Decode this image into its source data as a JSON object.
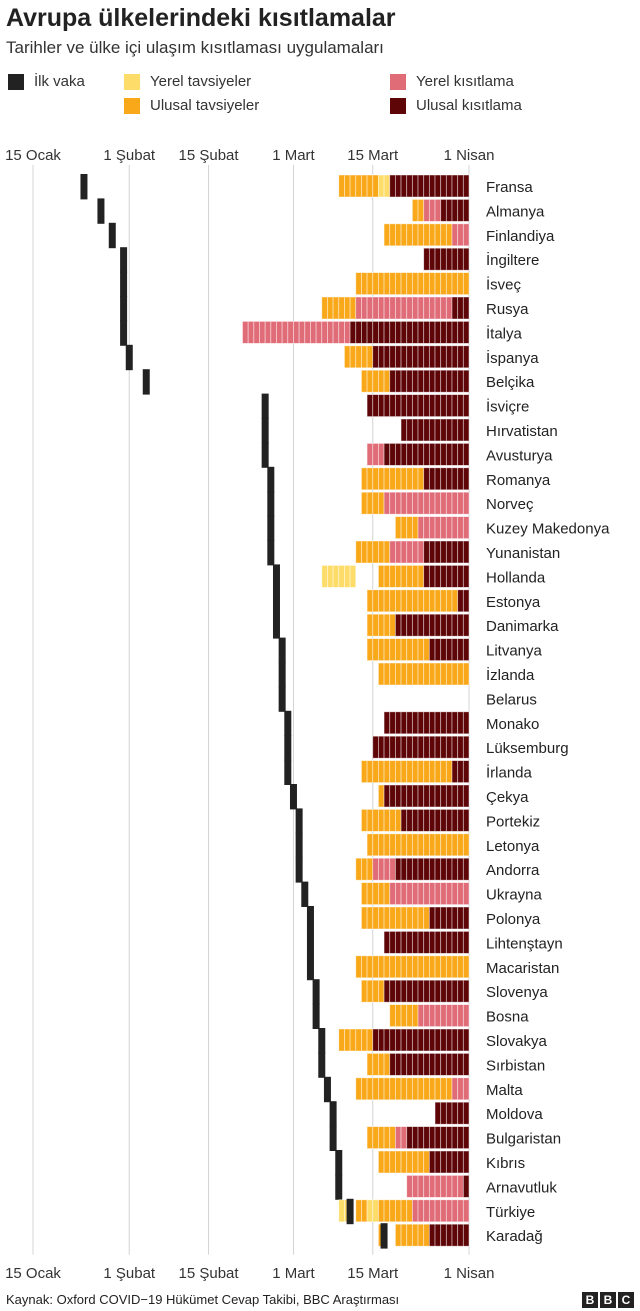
{
  "header": {
    "title": "Avrupa ülkelerindeki kısıtlamalar",
    "subtitle": "Tarihler ve ülke içi ulaşım kısıtlaması uygulamaları"
  },
  "legend": [
    {
      "key": "first_case",
      "label": "İlk vaka",
      "color": "#222222"
    },
    {
      "key": "local_advice",
      "label": "Yerel tavsiyeler",
      "color": "#fddc6a"
    },
    {
      "key": "national_advice",
      "label": "Ulusal tavsiyeler",
      "color": "#f9a81a"
    },
    {
      "key": "local_restriction",
      "label": "Yerel kısıtlama",
      "color": "#e06c78"
    },
    {
      "key": "national_restriction",
      "label": "Ulusal kısıtlama",
      "color": "#5e0507"
    }
  ],
  "chart_data": {
    "type": "bar",
    "x_axis": {
      "start": "2020-01-15",
      "end": "2020-04-01",
      "ticks": [
        {
          "date": "2020-01-15",
          "label": "15 Ocak"
        },
        {
          "date": "2020-02-01",
          "label": "1 Şubat"
        },
        {
          "date": "2020-02-15",
          "label": "15 Şubat"
        },
        {
          "date": "2020-03-01",
          "label": "1 Mart"
        },
        {
          "date": "2020-03-15",
          "label": "15 Mart"
        },
        {
          "date": "2020-04-01",
          "label": "1 Nisan"
        }
      ]
    },
    "grid": true,
    "countries": [
      {
        "name": "Fransa",
        "first_case": "2020-01-24",
        "segments": [
          [
            "national_advice",
            "2020-03-09",
            "2020-03-16"
          ],
          [
            "local_advice",
            "2020-03-16",
            "2020-03-18"
          ],
          [
            "national_restriction",
            "2020-03-18",
            "2020-04-01"
          ]
        ]
      },
      {
        "name": "Almanya",
        "first_case": "2020-01-27",
        "segments": [
          [
            "national_advice",
            "2020-03-22",
            "2020-03-24"
          ],
          [
            "local_restriction",
            "2020-03-24",
            "2020-03-27"
          ],
          [
            "national_restriction",
            "2020-03-27",
            "2020-04-01"
          ]
        ]
      },
      {
        "name": "Finlandiya",
        "first_case": "2020-01-29",
        "segments": [
          [
            "national_advice",
            "2020-03-17",
            "2020-03-29"
          ],
          [
            "local_restriction",
            "2020-03-29",
            "2020-04-01"
          ]
        ]
      },
      {
        "name": "İngiltere",
        "first_case": "2020-01-31",
        "segments": [
          [
            "national_restriction",
            "2020-03-24",
            "2020-04-01"
          ]
        ]
      },
      {
        "name": "İsveç",
        "first_case": "2020-01-31",
        "segments": [
          [
            "national_advice",
            "2020-03-12",
            "2020-04-01"
          ]
        ]
      },
      {
        "name": "Rusya",
        "first_case": "2020-01-31",
        "segments": [
          [
            "national_advice",
            "2020-03-06",
            "2020-03-12"
          ],
          [
            "local_restriction",
            "2020-03-12",
            "2020-03-29"
          ],
          [
            "national_restriction",
            "2020-03-29",
            "2020-04-01"
          ]
        ]
      },
      {
        "name": "İtalya",
        "first_case": "2020-01-31",
        "segments": [
          [
            "local_restriction",
            "2020-02-21",
            "2020-03-11"
          ],
          [
            "national_restriction",
            "2020-03-11",
            "2020-04-01"
          ]
        ]
      },
      {
        "name": "İspanya",
        "first_case": "2020-02-01",
        "segments": [
          [
            "national_advice",
            "2020-03-10",
            "2020-03-15"
          ],
          [
            "national_restriction",
            "2020-03-15",
            "2020-04-01"
          ]
        ]
      },
      {
        "name": "Belçika",
        "first_case": "2020-02-04",
        "segments": [
          [
            "national_advice",
            "2020-03-13",
            "2020-03-18"
          ],
          [
            "national_restriction",
            "2020-03-18",
            "2020-04-01"
          ]
        ]
      },
      {
        "name": "İsviçre",
        "first_case": "2020-02-25",
        "segments": [
          [
            "national_restriction",
            "2020-03-14",
            "2020-04-01"
          ]
        ]
      },
      {
        "name": "Hırvatistan",
        "first_case": "2020-02-25",
        "segments": [
          [
            "national_restriction",
            "2020-03-20",
            "2020-04-01"
          ]
        ]
      },
      {
        "name": "Avusturya",
        "first_case": "2020-02-25",
        "segments": [
          [
            "local_restriction",
            "2020-03-14",
            "2020-03-17"
          ],
          [
            "national_restriction",
            "2020-03-17",
            "2020-04-01"
          ]
        ]
      },
      {
        "name": "Romanya",
        "first_case": "2020-02-26",
        "segments": [
          [
            "national_advice",
            "2020-03-13",
            "2020-03-24"
          ],
          [
            "national_restriction",
            "2020-03-24",
            "2020-04-01"
          ]
        ]
      },
      {
        "name": "Norveç",
        "first_case": "2020-02-26",
        "segments": [
          [
            "national_advice",
            "2020-03-13",
            "2020-03-17"
          ],
          [
            "local_restriction",
            "2020-03-17",
            "2020-04-01"
          ]
        ]
      },
      {
        "name": "Kuzey Makedonya",
        "first_case": "2020-02-26",
        "segments": [
          [
            "national_advice",
            "2020-03-19",
            "2020-03-23"
          ],
          [
            "local_restriction",
            "2020-03-23",
            "2020-04-01"
          ]
        ]
      },
      {
        "name": "Yunanistan",
        "first_case": "2020-02-26",
        "segments": [
          [
            "national_advice",
            "2020-03-12",
            "2020-03-18"
          ],
          [
            "local_restriction",
            "2020-03-18",
            "2020-03-24"
          ],
          [
            "national_restriction",
            "2020-03-24",
            "2020-04-01"
          ]
        ]
      },
      {
        "name": "Hollanda",
        "first_case": "2020-02-27",
        "segments": [
          [
            "local_advice",
            "2020-03-06",
            "2020-03-12"
          ],
          [
            "national_advice",
            "2020-03-16",
            "2020-03-24"
          ],
          [
            "national_restriction",
            "2020-03-24",
            "2020-04-01"
          ]
        ]
      },
      {
        "name": "Estonya",
        "first_case": "2020-02-27",
        "segments": [
          [
            "national_advice",
            "2020-03-14",
            "2020-03-30"
          ],
          [
            "national_restriction",
            "2020-03-30",
            "2020-04-01"
          ]
        ]
      },
      {
        "name": "Danimarka",
        "first_case": "2020-02-27",
        "segments": [
          [
            "national_advice",
            "2020-03-14",
            "2020-03-19"
          ],
          [
            "national_restriction",
            "2020-03-19",
            "2020-04-01"
          ]
        ]
      },
      {
        "name": "Litvanya",
        "first_case": "2020-02-28",
        "segments": [
          [
            "national_advice",
            "2020-03-14",
            "2020-03-25"
          ],
          [
            "national_restriction",
            "2020-03-25",
            "2020-04-01"
          ]
        ]
      },
      {
        "name": "İzlanda",
        "first_case": "2020-02-28",
        "segments": [
          [
            "national_advice",
            "2020-03-16",
            "2020-04-01"
          ]
        ]
      },
      {
        "name": "Belarus",
        "first_case": "2020-02-28",
        "segments": []
      },
      {
        "name": "Monako",
        "first_case": "2020-02-29",
        "segments": [
          [
            "national_restriction",
            "2020-03-17",
            "2020-04-01"
          ]
        ]
      },
      {
        "name": "Lüksemburg",
        "first_case": "2020-02-29",
        "segments": [
          [
            "national_restriction",
            "2020-03-15",
            "2020-04-01"
          ]
        ]
      },
      {
        "name": "İrlanda",
        "first_case": "2020-02-29",
        "segments": [
          [
            "national_advice",
            "2020-03-13",
            "2020-03-29"
          ],
          [
            "national_restriction",
            "2020-03-29",
            "2020-04-01"
          ]
        ]
      },
      {
        "name": "Çekya",
        "first_case": "2020-03-01",
        "segments": [
          [
            "national_advice",
            "2020-03-16",
            "2020-03-17"
          ],
          [
            "national_restriction",
            "2020-03-17",
            "2020-04-01"
          ]
        ]
      },
      {
        "name": "Portekiz",
        "first_case": "2020-03-02",
        "segments": [
          [
            "national_advice",
            "2020-03-13",
            "2020-03-20"
          ],
          [
            "national_restriction",
            "2020-03-20",
            "2020-04-01"
          ]
        ]
      },
      {
        "name": "Letonya",
        "first_case": "2020-03-02",
        "segments": [
          [
            "national_advice",
            "2020-03-14",
            "2020-04-01"
          ]
        ]
      },
      {
        "name": "Andorra",
        "first_case": "2020-03-02",
        "segments": [
          [
            "national_advice",
            "2020-03-12",
            "2020-03-15"
          ],
          [
            "local_restriction",
            "2020-03-15",
            "2020-03-19"
          ],
          [
            "national_restriction",
            "2020-03-19",
            "2020-04-01"
          ]
        ]
      },
      {
        "name": "Ukrayna",
        "first_case": "2020-03-03",
        "segments": [
          [
            "national_advice",
            "2020-03-13",
            "2020-03-18"
          ],
          [
            "local_restriction",
            "2020-03-18",
            "2020-04-01"
          ]
        ]
      },
      {
        "name": "Polonya",
        "first_case": "2020-03-04",
        "segments": [
          [
            "national_advice",
            "2020-03-13",
            "2020-03-25"
          ],
          [
            "national_restriction",
            "2020-03-25",
            "2020-04-01"
          ]
        ]
      },
      {
        "name": "Lihtenştayn",
        "first_case": "2020-03-04",
        "segments": [
          [
            "national_restriction",
            "2020-03-17",
            "2020-04-01"
          ]
        ]
      },
      {
        "name": "Macaristan",
        "first_case": "2020-03-04",
        "segments": [
          [
            "national_advice",
            "2020-03-12",
            "2020-04-01"
          ]
        ]
      },
      {
        "name": "Slovenya",
        "first_case": "2020-03-05",
        "segments": [
          [
            "national_advice",
            "2020-03-13",
            "2020-03-17"
          ],
          [
            "national_restriction",
            "2020-03-17",
            "2020-04-01"
          ]
        ]
      },
      {
        "name": "Bosna",
        "first_case": "2020-03-05",
        "segments": [
          [
            "national_advice",
            "2020-03-18",
            "2020-03-23"
          ],
          [
            "local_restriction",
            "2020-03-23",
            "2020-04-01"
          ]
        ]
      },
      {
        "name": "Slovakya",
        "first_case": "2020-03-06",
        "segments": [
          [
            "national_advice",
            "2020-03-09",
            "2020-03-15"
          ],
          [
            "national_restriction",
            "2020-03-15",
            "2020-04-01"
          ]
        ]
      },
      {
        "name": "Sırbistan",
        "first_case": "2020-03-06",
        "segments": [
          [
            "national_advice",
            "2020-03-14",
            "2020-03-18"
          ],
          [
            "national_restriction",
            "2020-03-18",
            "2020-04-01"
          ]
        ]
      },
      {
        "name": "Malta",
        "first_case": "2020-03-07",
        "segments": [
          [
            "national_advice",
            "2020-03-12",
            "2020-03-29"
          ],
          [
            "local_restriction",
            "2020-03-29",
            "2020-04-01"
          ]
        ]
      },
      {
        "name": "Moldova",
        "first_case": "2020-03-08",
        "segments": [
          [
            "national_restriction",
            "2020-03-26",
            "2020-04-01"
          ]
        ]
      },
      {
        "name": "Bulgaristan",
        "first_case": "2020-03-08",
        "segments": [
          [
            "national_advice",
            "2020-03-14",
            "2020-03-19"
          ],
          [
            "local_restriction",
            "2020-03-19",
            "2020-03-21"
          ],
          [
            "national_restriction",
            "2020-03-21",
            "2020-04-01"
          ]
        ]
      },
      {
        "name": "Kıbrıs",
        "first_case": "2020-03-09",
        "segments": [
          [
            "national_advice",
            "2020-03-16",
            "2020-03-25"
          ],
          [
            "national_restriction",
            "2020-03-25",
            "2020-04-01"
          ]
        ]
      },
      {
        "name": "Arnavutluk",
        "first_case": "2020-03-09",
        "segments": [
          [
            "local_restriction",
            "2020-03-21",
            "2020-03-31"
          ],
          [
            "national_restriction",
            "2020-03-31",
            "2020-04-01"
          ]
        ]
      },
      {
        "name": "Türkiye",
        "first_case": "2020-03-11",
        "segments": [
          [
            "local_advice",
            "2020-03-09",
            "2020-03-11"
          ],
          [
            "national_advice",
            "2020-03-12",
            "2020-03-14"
          ],
          [
            "local_advice",
            "2020-03-14",
            "2020-03-16"
          ],
          [
            "national_advice",
            "2020-03-16",
            "2020-03-22"
          ],
          [
            "local_restriction",
            "2020-03-22",
            "2020-04-01"
          ]
        ]
      },
      {
        "name": "Karadağ",
        "first_case": "2020-03-17",
        "segments": [
          [
            "national_advice",
            "2020-03-16",
            "2020-03-17"
          ],
          [
            "national_advice",
            "2020-03-19",
            "2020-03-25"
          ],
          [
            "national_restriction",
            "2020-03-25",
            "2020-04-01"
          ]
        ]
      }
    ]
  },
  "footer": {
    "source": "Kaynak: Oxford COVID−19 Hükümet Cevap Takibi, BBC Araştırması",
    "logo": [
      "B",
      "B",
      "C"
    ]
  }
}
